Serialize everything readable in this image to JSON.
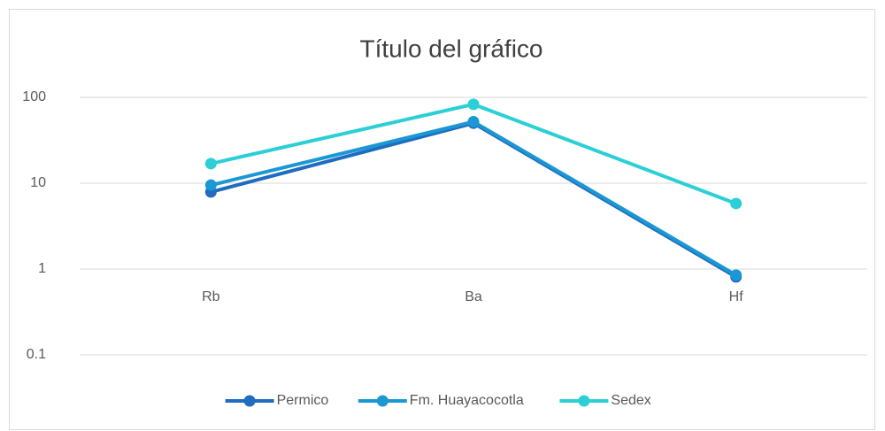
{
  "chart_data": {
    "type": "line",
    "title": "Título del gráfico",
    "categories": [
      "Rb",
      "Ba",
      "Hf"
    ],
    "series": [
      {
        "name": "Permico",
        "color": "#1f6cc0",
        "values": [
          7.9,
          50,
          0.81
        ]
      },
      {
        "name": "Fm. Huayacocotla",
        "color": "#1b98d4",
        "values": [
          9.5,
          52,
          0.85
        ]
      },
      {
        "name": "Sedex",
        "color": "#2ccfd6",
        "values": [
          16.9,
          83,
          5.8
        ]
      }
    ],
    "log_scale": true,
    "ylim": [
      0.1,
      100
    ],
    "yticks": [
      0.1,
      1,
      10,
      100
    ],
    "grid": true,
    "legend": "bottom"
  }
}
